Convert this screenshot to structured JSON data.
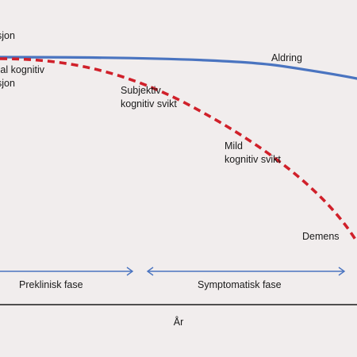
{
  "labels": {
    "top_left_1": "sjon",
    "top_left_2a": "mal kognitiv",
    "top_left_2b": "sjon",
    "aging": "Aldring",
    "subjective_a": "Subjektiv",
    "subjective_b": "kognitiv svikt",
    "mild_a": "Mild",
    "mild_b": "kognitiv svikt",
    "dementia": "Demens",
    "preclinical_phase": "Preklinisk fase",
    "symptomatic_phase": "Symptomatisk fase",
    "x_axis": "År"
  },
  "colors": {
    "background": "#f1eded",
    "aging_curve": "#4a74c0",
    "disease_curve": "#d0202a",
    "arrows": "#4a74c0",
    "axis": "#1a1a1a"
  }
}
